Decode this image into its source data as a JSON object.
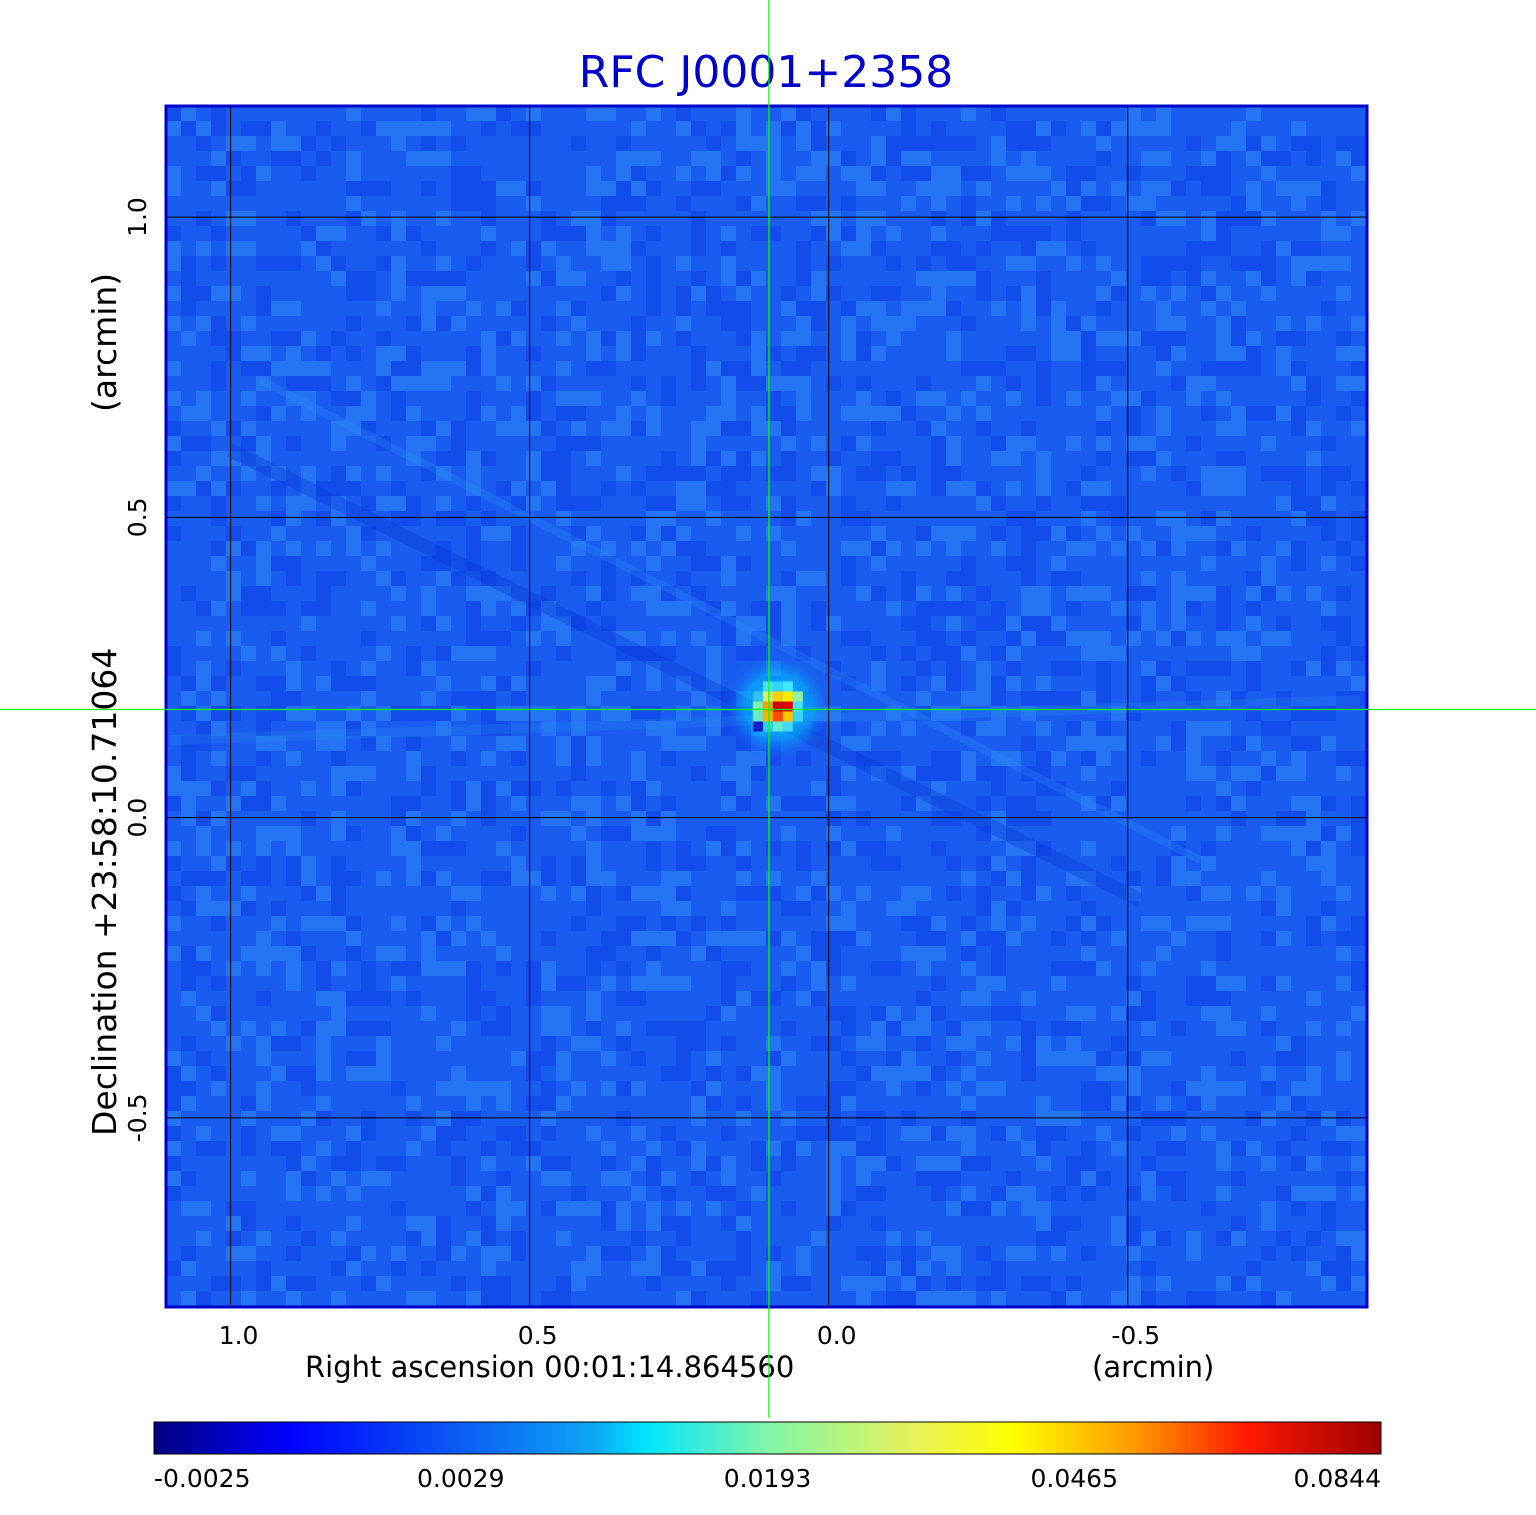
{
  "chart_data": {
    "type": "heatmap",
    "title": "RFC J0001+2358",
    "xlabel": "Right ascension  00:01:14.864560",
    "xlabel_unit": "(arcmin)",
    "ylabel": "Declination  +23:58:10.71064",
    "ylabel_unit": "(arcmin)",
    "x_axis": {
      "direction": "decreasing",
      "range": [
        1.108,
        -0.9
      ],
      "ticks": [
        1.0,
        0.5,
        0.0,
        -0.5
      ],
      "tick_labels": [
        "1.0",
        "0.5",
        "0.0",
        "-0.5"
      ]
    },
    "y_axis": {
      "range": [
        -0.815,
        1.185
      ],
      "ticks": [
        1.0,
        0.5,
        0.0,
        -0.5
      ],
      "tick_labels": [
        "1.0",
        "0.5",
        "0.0",
        "-0.5"
      ]
    },
    "grid": true,
    "crosshair": {
      "ra_offset": 0.1,
      "dec_offset": 0.18
    },
    "source": {
      "ra_offset": 0.085,
      "dec_offset": 0.185,
      "peak": 0.0844
    },
    "colormap": "jet",
    "colorbar": {
      "orientation": "horizontal",
      "location": "bottom",
      "tick_labels": [
        "-0.0025",
        "0.0029",
        "0.0193",
        "0.0465",
        "0.0844"
      ]
    },
    "colors": {
      "title": "#0000cc",
      "frame": "#0000cc",
      "grid": "#000000",
      "crosshair": "#00ff00",
      "background": "#1a5cf0"
    }
  }
}
